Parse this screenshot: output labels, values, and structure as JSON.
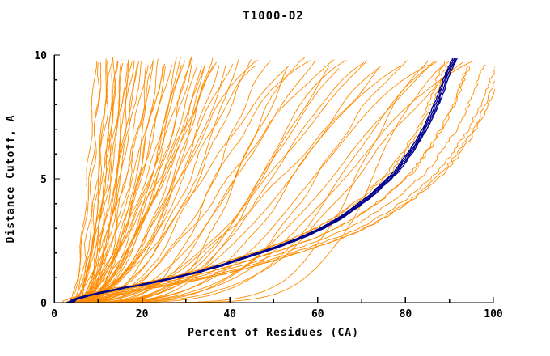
{
  "window": {
    "background": "#FFFFFF"
  },
  "chart_data": {
    "type": "line",
    "title": "T1000-D2",
    "xlabel": "Percent of Residues (CA)",
    "ylabel": "Distance Cutoff, A",
    "xlim": [
      0,
      100
    ],
    "ylim": [
      0,
      10
    ],
    "xticks": [
      0,
      20,
      40,
      60,
      80,
      100
    ],
    "x_minor_step": 10,
    "yticks": [
      0,
      5,
      10
    ],
    "y_minor_step": 1,
    "grid": false,
    "legend_position": "none",
    "colors": {
      "predictions": "#FF8C00",
      "best_bundle": "#00008B",
      "axis": "#000000",
      "text": "#000000",
      "background": "#FFFFFF"
    },
    "seed": 42,
    "navy_bundle": {
      "count": 4,
      "anchors": [
        [
          3.5,
          0
        ],
        [
          5,
          0.15
        ],
        [
          8,
          0.3
        ],
        [
          12,
          0.45
        ],
        [
          16,
          0.6
        ],
        [
          20,
          0.72
        ],
        [
          26,
          0.95
        ],
        [
          32,
          1.2
        ],
        [
          38,
          1.5
        ],
        [
          44,
          1.85
        ],
        [
          50,
          2.2
        ],
        [
          56,
          2.6
        ],
        [
          61,
          3.0
        ],
        [
          65,
          3.4
        ],
        [
          69,
          3.9
        ],
        [
          72,
          4.3
        ],
        [
          75,
          4.8
        ],
        [
          78,
          5.3
        ],
        [
          80,
          5.8
        ],
        [
          82,
          6.3
        ],
        [
          84,
          6.9
        ],
        [
          86,
          7.6
        ],
        [
          87.5,
          8.2
        ],
        [
          88.5,
          8.7
        ],
        [
          89.5,
          9.2
        ],
        [
          90.5,
          9.6
        ],
        [
          91.2,
          9.85
        ]
      ]
    },
    "orange_curves": {
      "pow": [
        [
          4.0,
          9.5,
          1.6
        ],
        [
          4.5,
          10.5,
          2.0
        ],
        [
          3.8,
          11,
          1.4
        ],
        [
          5.0,
          12,
          2.3
        ],
        [
          4.2,
          12.5,
          1.7
        ],
        [
          5.5,
          13,
          1.5
        ],
        [
          4.8,
          14,
          2.6
        ],
        [
          4.0,
          14.5,
          1.9
        ],
        [
          5.2,
          15,
          1.4
        ],
        [
          6.0,
          15.5,
          2.1
        ],
        [
          4.4,
          16,
          1.7
        ],
        [
          5.8,
          17,
          2.4
        ],
        [
          4.1,
          17.5,
          1.5
        ],
        [
          6.2,
          18,
          1.9
        ],
        [
          4.6,
          19,
          2.2
        ],
        [
          5.4,
          20,
          1.6
        ],
        [
          4.9,
          21,
          2.0
        ],
        [
          6.5,
          22,
          1.8
        ],
        [
          4.3,
          23,
          1.5
        ],
        [
          5.1,
          24,
          2.3
        ],
        [
          6.8,
          25,
          1.7
        ],
        [
          4.7,
          26,
          2.0
        ],
        [
          5.9,
          27,
          1.6
        ],
        [
          4.2,
          28,
          2.4
        ],
        [
          6.1,
          29,
          1.8
        ],
        [
          5.3,
          30,
          1.5
        ],
        [
          4.8,
          31,
          2.1
        ],
        [
          6.6,
          32,
          1.7
        ],
        [
          5.0,
          33,
          1.9
        ],
        [
          4.5,
          34,
          2.2
        ],
        [
          5.7,
          35,
          1.6
        ],
        [
          6.3,
          36,
          1.9
        ],
        [
          4.9,
          37,
          1.5
        ],
        [
          5.2,
          38,
          2.0
        ],
        [
          4.1,
          13.5,
          3.0
        ],
        [
          5.6,
          16.5,
          2.8
        ],
        [
          6.0,
          19.5,
          1.3
        ],
        [
          4.4,
          22.5,
          2.7
        ],
        [
          5.8,
          25.5,
          1.4
        ],
        [
          4.6,
          28.5,
          2.5
        ],
        [
          6.4,
          31.5,
          1.4
        ],
        [
          5.5,
          34.5,
          2.6
        ],
        [
          4.3,
          37.5,
          1.3
        ],
        [
          6.7,
          40,
          1.8
        ],
        [
          5.0,
          42,
          2.2
        ]
      ],
      "sig": [
        [
          4.0,
          42,
          2.0,
          1.0
        ],
        [
          5.0,
          45,
          2.6,
          0.8
        ],
        [
          4.5,
          48,
          1.8,
          1.3
        ],
        [
          6.0,
          50,
          3.2,
          1.0
        ],
        [
          4.2,
          52,
          2.2,
          1.6
        ],
        [
          5.5,
          54,
          2.9,
          0.7
        ],
        [
          4.8,
          56,
          1.6,
          1.1
        ],
        [
          6.2,
          58,
          3.5,
          1.2
        ],
        [
          4.4,
          60,
          2.4,
          0.9
        ],
        [
          5.8,
          62,
          2.0,
          1.5
        ],
        [
          4.6,
          64,
          3.0,
          0.8
        ],
        [
          6.4,
          66,
          1.7,
          1.2
        ],
        [
          5.2,
          68,
          2.7,
          1.0
        ],
        [
          4.3,
          70,
          3.4,
          1.4
        ],
        [
          5.6,
          72,
          2.1,
          0.9
        ],
        [
          4.9,
          74,
          2.8,
          1.2
        ],
        [
          6.6,
          76,
          1.9,
          0.8
        ],
        [
          5.3,
          78,
          3.1,
          1.1
        ],
        [
          4.5,
          82,
          3.6,
          1.0
        ],
        [
          5.5,
          85,
          2.4,
          1.3
        ],
        [
          4.8,
          88,
          3.0,
          0.9
        ],
        [
          6.0,
          90,
          3.8,
          1.1
        ],
        [
          5.0,
          93,
          2.7,
          1.4
        ],
        [
          5.4,
          96,
          3.3,
          1.0
        ],
        [
          4.6,
          99,
          2.9,
          1.2
        ],
        [
          7.0,
          86,
          5.5,
          0.9
        ],
        [
          8.0,
          92,
          6.0,
          1.1
        ]
      ],
      "track": [
        [
          1.5,
          1.03
        ],
        [
          3,
          1.05
        ],
        [
          -2,
          1.01
        ],
        [
          4,
          1.07
        ],
        [
          2,
          1.02
        ],
        [
          5,
          1.08
        ],
        [
          -1,
          0.99
        ],
        [
          6,
          1.06
        ]
      ]
    }
  }
}
